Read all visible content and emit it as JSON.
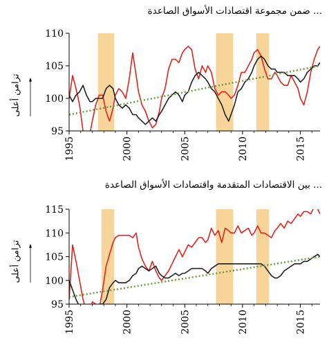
{
  "chart_data": [
    {
      "type": "line",
      "title": "... ضمن مجموعة اقتصادات الأسواق الصاعدة",
      "ylabel": "تزامن أعلى",
      "xlim": [
        1995,
        2016.7
      ],
      "ylim": [
        95,
        110
      ],
      "xticks": [
        1995,
        2000,
        2005,
        2010,
        2015
      ],
      "yticks": [
        95,
        100,
        105,
        110
      ],
      "grid": false,
      "shaded_periods": [
        [
          1997.5,
          1998.9
        ],
        [
          2007.7,
          2009.2
        ],
        [
          2011.2,
          2012.3
        ]
      ],
      "series": [
        {
          "color": "#e8201c",
          "x": [
            1995.0,
            1995.3,
            1995.6,
            1995.9,
            1996.2,
            1996.5,
            1996.8,
            1997.0,
            1997.3,
            1997.6,
            1997.9,
            1998.2,
            1998.5,
            1998.8,
            1999.0,
            1999.3,
            1999.6,
            1999.9,
            2000.2,
            2000.5,
            2000.8,
            2001.0,
            2001.3,
            2001.6,
            2001.9,
            2002.2,
            2002.5,
            2002.8,
            2003.0,
            2003.3,
            2003.6,
            2003.9,
            2004.2,
            2004.5,
            2004.8,
            2005.0,
            2005.3,
            2005.6,
            2005.9,
            2006.2,
            2006.5,
            2006.8,
            2007.0,
            2007.3,
            2007.6,
            2007.9,
            2008.2,
            2008.5,
            2008.8,
            2009.0,
            2009.3,
            2009.6,
            2009.9,
            2010.2,
            2010.5,
            2010.8,
            2011.0,
            2011.3,
            2011.6,
            2011.9,
            2012.2,
            2012.5,
            2012.8,
            2013.0,
            2013.3,
            2013.6,
            2013.9,
            2014.2,
            2014.5,
            2014.8,
            2015.0,
            2015.3,
            2015.6,
            2015.9,
            2016.2,
            2016.5,
            2016.7
          ],
          "y": [
            100.0,
            103.5,
            101.5,
            99.0,
            95.0,
            94.0,
            94.5,
            96.5,
            99.0,
            100.5,
            100.5,
            98.0,
            96.5,
            98.5,
            100.5,
            101.5,
            101.0,
            100.0,
            103.0,
            107.0,
            103.5,
            101.0,
            99.0,
            98.0,
            96.5,
            95.5,
            96.0,
            98.0,
            100.0,
            101.5,
            104.5,
            106.0,
            106.0,
            105.5,
            107.0,
            107.5,
            108.0,
            107.5,
            104.5,
            103.0,
            105.0,
            104.0,
            105.0,
            104.0,
            101.5,
            100.5,
            101.0,
            101.0,
            100.5,
            100.0,
            100.5,
            102.0,
            104.0,
            104.0,
            105.0,
            106.0,
            107.0,
            107.5,
            106.5,
            104.5,
            103.0,
            103.0,
            104.0,
            103.5,
            102.5,
            102.0,
            102.0,
            103.5,
            102.5,
            101.5,
            100.0,
            99.0,
            101.0,
            104.0,
            106.0,
            107.5,
            108.0
          ]
        },
        {
          "color": "#1f1f1f",
          "x": [
            1995.0,
            1995.3,
            1995.6,
            1995.9,
            1996.2,
            1996.5,
            1996.8,
            1997.0,
            1997.3,
            1997.6,
            1997.9,
            1998.2,
            1998.5,
            1998.8,
            1999.0,
            1999.3,
            1999.6,
            1999.9,
            2000.2,
            2000.5,
            2000.8,
            2001.0,
            2001.3,
            2001.6,
            2001.9,
            2002.2,
            2002.5,
            2002.8,
            2003.0,
            2003.3,
            2003.6,
            2003.9,
            2004.2,
            2004.5,
            2004.8,
            2005.0,
            2005.3,
            2005.6,
            2005.9,
            2006.2,
            2006.5,
            2006.8,
            2007.0,
            2007.3,
            2007.6,
            2007.9,
            2008.2,
            2008.5,
            2008.8,
            2009.0,
            2009.3,
            2009.6,
            2009.9,
            2010.2,
            2010.5,
            2010.8,
            2011.0,
            2011.3,
            2011.6,
            2011.9,
            2012.2,
            2012.5,
            2012.8,
            2013.0,
            2013.3,
            2013.6,
            2013.9,
            2014.2,
            2014.5,
            2014.8,
            2015.0,
            2015.3,
            2015.6,
            2015.9,
            2016.2,
            2016.5,
            2016.7
          ],
          "y": [
            100.5,
            99.5,
            100.5,
            101.0,
            102.0,
            100.5,
            99.5,
            99.5,
            100.0,
            100.0,
            100.0,
            101.5,
            102.0,
            101.5,
            100.0,
            99.0,
            98.5,
            99.0,
            98.5,
            97.5,
            97.5,
            97.0,
            96.5,
            96.0,
            96.5,
            97.0,
            96.5,
            97.5,
            98.0,
            99.0,
            100.0,
            100.5,
            101.0,
            100.5,
            99.5,
            100.5,
            101.0,
            102.5,
            103.5,
            104.0,
            103.5,
            103.0,
            102.5,
            101.5,
            101.0,
            100.0,
            99.0,
            97.5,
            96.5,
            97.5,
            99.0,
            101.0,
            101.5,
            102.5,
            103.0,
            104.0,
            105.0,
            106.0,
            106.5,
            106.0,
            105.0,
            104.5,
            104.5,
            104.0,
            104.0,
            104.0,
            103.5,
            103.5,
            103.5,
            103.0,
            102.5,
            103.0,
            104.0,
            104.5,
            105.0,
            105.0,
            105.5
          ]
        },
        {
          "color": "#6a9a3a",
          "x": [
            1995.0,
            2016.7
          ],
          "y": [
            97.5,
            105.0
          ]
        }
      ]
    },
    {
      "type": "line",
      "title": "... بين الاقتصادات المتقدمة واقتصادات الأسواق الصاعدة",
      "ylabel": "تزامن أعلى",
      "xlim": [
        1995,
        2016.7
      ],
      "ylim": [
        95,
        115
      ],
      "xticks": [
        1995,
        2000,
        2005,
        2010,
        2015
      ],
      "yticks": [
        95,
        100,
        105,
        110,
        115
      ],
      "grid": false,
      "shaded_periods": [
        [
          1997.8,
          1998.9
        ],
        [
          2007.7,
          2009.2
        ],
        [
          2011.2,
          2012.3
        ]
      ],
      "series": [
        {
          "color": "#e8201c",
          "x": [
            1995.0,
            1995.3,
            1995.6,
            1995.9,
            1996.2,
            1996.5,
            1996.8,
            1997.0,
            1997.3,
            1997.6,
            1997.9,
            1998.2,
            1998.5,
            1998.8,
            1999.0,
            1999.3,
            1999.6,
            1999.9,
            2000.2,
            2000.5,
            2000.8,
            2001.0,
            2001.3,
            2001.6,
            2001.9,
            2002.2,
            2002.5,
            2002.8,
            2003.0,
            2003.3,
            2003.6,
            2003.9,
            2004.2,
            2004.5,
            2004.8,
            2005.0,
            2005.3,
            2005.6,
            2005.9,
            2006.2,
            2006.5,
            2006.8,
            2007.0,
            2007.3,
            2007.6,
            2007.9,
            2008.2,
            2008.5,
            2008.8,
            2009.0,
            2009.3,
            2009.6,
            2009.9,
            2010.2,
            2010.5,
            2010.8,
            2011.0,
            2011.3,
            2011.6,
            2011.9,
            2012.2,
            2012.5,
            2012.8,
            2013.0,
            2013.3,
            2013.6,
            2013.9,
            2014.2,
            2014.5,
            2014.8,
            2015.0,
            2015.3,
            2015.6,
            2015.9,
            2016.2,
            2016.5,
            2016.7
          ],
          "y": [
            96.0,
            107.5,
            104.0,
            100.0,
            96.0,
            93.5,
            92.5,
            95.5,
            95.0,
            94.0,
            98.0,
            103.0,
            105.5,
            108.0,
            109.0,
            109.5,
            109.5,
            109.5,
            109.5,
            109.0,
            110.0,
            107.0,
            104.5,
            103.0,
            102.0,
            104.0,
            102.0,
            100.5,
            100.0,
            101.0,
            102.0,
            103.5,
            105.0,
            106.5,
            105.0,
            106.0,
            107.5,
            107.0,
            108.0,
            109.0,
            109.0,
            108.0,
            108.5,
            111.0,
            109.5,
            110.5,
            108.0,
            111.0,
            110.5,
            110.0,
            110.0,
            111.5,
            110.0,
            110.5,
            111.0,
            109.5,
            110.0,
            111.5,
            110.0,
            110.0,
            109.5,
            109.0,
            110.5,
            111.0,
            112.0,
            111.0,
            112.5,
            112.0,
            113.0,
            114.0,
            113.5,
            114.5,
            114.5,
            114.0,
            115.5,
            115.0,
            114.0
          ]
        },
        {
          "color": "#1f1f1f",
          "x": [
            1995.0,
            1995.3,
            1995.6,
            1995.9,
            1996.2,
            1996.5,
            1996.8,
            1997.0,
            1997.3,
            1997.6,
            1997.9,
            1998.2,
            1998.5,
            1998.8,
            1999.0,
            1999.3,
            1999.6,
            1999.9,
            2000.2,
            2000.5,
            2000.8,
            2001.0,
            2001.3,
            2001.6,
            2001.9,
            2002.2,
            2002.5,
            2002.8,
            2003.0,
            2003.3,
            2003.6,
            2003.9,
            2004.2,
            2004.5,
            2004.8,
            2005.0,
            2005.3,
            2005.6,
            2005.9,
            2006.2,
            2006.5,
            2006.8,
            2007.0,
            2007.3,
            2007.6,
            2007.9,
            2008.2,
            2008.5,
            2008.8,
            2009.0,
            2009.3,
            2009.6,
            2009.9,
            2010.2,
            2010.5,
            2010.8,
            2011.0,
            2011.3,
            2011.6,
            2011.9,
            2012.2,
            2012.5,
            2012.8,
            2013.0,
            2013.3,
            2013.6,
            2013.9,
            2014.2,
            2014.5,
            2014.8,
            2015.0,
            2015.3,
            2015.6,
            2015.9,
            2016.2,
            2016.5,
            2016.7
          ],
          "y": [
            100.0,
            98.0,
            96.0,
            94.5,
            94.0,
            94.0,
            93.0,
            93.5,
            94.5,
            95.0,
            95.0,
            96.0,
            98.5,
            99.5,
            100.0,
            99.5,
            99.5,
            99.5,
            100.0,
            101.0,
            101.5,
            102.5,
            103.0,
            102.5,
            102.0,
            102.5,
            103.0,
            101.5,
            101.0,
            100.5,
            100.5,
            101.0,
            101.5,
            101.0,
            101.5,
            101.5,
            102.0,
            102.5,
            102.5,
            102.5,
            102.5,
            102.0,
            101.5,
            102.5,
            103.0,
            103.5,
            103.5,
            103.5,
            103.5,
            103.5,
            103.5,
            103.5,
            103.5,
            103.5,
            103.5,
            103.5,
            103.5,
            103.5,
            103.5,
            103.0,
            102.0,
            101.0,
            100.5,
            100.5,
            101.0,
            102.0,
            102.5,
            103.0,
            103.5,
            103.5,
            103.5,
            104.0,
            104.0,
            104.5,
            105.0,
            105.5,
            105.0
          ]
        },
        {
          "color": "#6a9a3a",
          "x": [
            1995.0,
            2016.7
          ],
          "y": [
            96.5,
            105.0
          ]
        }
      ]
    }
  ]
}
